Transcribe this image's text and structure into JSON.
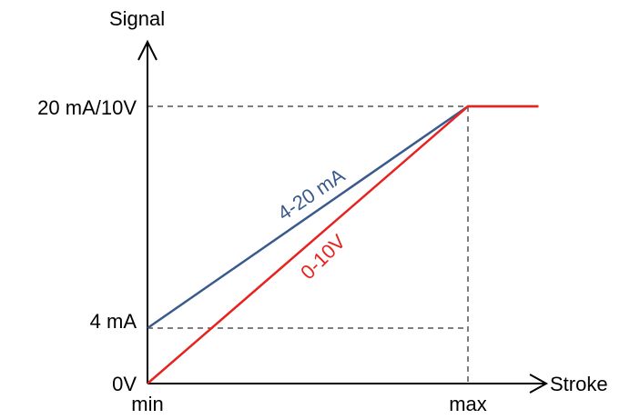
{
  "chart_data": {
    "type": "line",
    "title": "",
    "xlabel": "Stroke",
    "ylabel": "Signal",
    "x_ticks": [
      {
        "value": 0,
        "label": "min"
      },
      {
        "value": 1,
        "label": "max"
      }
    ],
    "y_ticks": [
      {
        "value": 0,
        "label": "0V"
      },
      {
        "value": 0.2,
        "label": "4 mA"
      },
      {
        "value": 1,
        "label": "20 mA/10V"
      }
    ],
    "xlim": [
      0,
      1.22
    ],
    "ylim": [
      0,
      1.33
    ],
    "grid": false,
    "series": [
      {
        "name": "4-20 mA",
        "color": "#3a5a8c",
        "x": [
          0,
          1,
          1.22
        ],
        "y": [
          0.2,
          1,
          1
        ]
      },
      {
        "name": "0-10V",
        "color": "#e8231f",
        "x": [
          0,
          1,
          1.22
        ],
        "y": [
          0,
          1,
          1
        ]
      }
    ]
  }
}
